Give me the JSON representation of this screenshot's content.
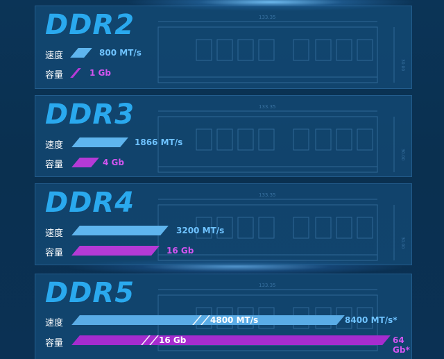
{
  "dim_label": "133.35",
  "side_label": "30.00",
  "generations": [
    {
      "name": "DDR2",
      "speed_label": "速度",
      "speed": "800 MT/s",
      "cap_label": "容量",
      "capacity": "1 Gb"
    },
    {
      "name": "DDR3",
      "speed_label": "速度",
      "speed": "1866 MT/s",
      "cap_label": "容量",
      "capacity": "4 Gb"
    },
    {
      "name": "DDR4",
      "speed_label": "速度",
      "speed": "3200 MT/s",
      "cap_label": "容量",
      "capacity": "16 Gb"
    },
    {
      "name": "DDR5",
      "speed_label": "速度",
      "speed": "4800 MT/s",
      "speed_max": "8400 MT/s*",
      "cap_label": "容量",
      "capacity": "16 Gb",
      "capacity_max": "64 Gb*"
    }
  ]
}
